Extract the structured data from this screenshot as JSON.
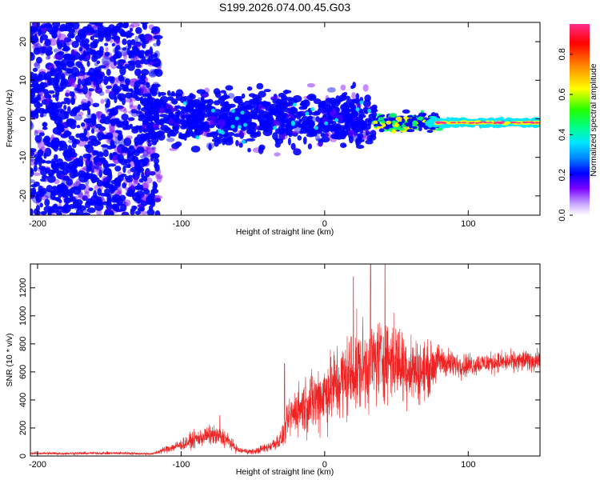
{
  "figure_title": "S199.2026.074.00.45.G03",
  "chart_data": [
    {
      "type": "heatmap",
      "title": "S199.2026.074.00.45.G03",
      "xlabel": "Height of straight line (km)",
      "ylabel": "Frequency (Hz)",
      "xlim": [
        -205,
        150
      ],
      "ylim": [
        -25,
        25
      ],
      "xticks": [
        -200,
        -100,
        0,
        100
      ],
      "yticks": [
        -20,
        -10,
        0,
        10,
        20
      ],
      "colorbar": {
        "label": "Normalized spectral amplitude",
        "range": [
          0,
          0.95
        ],
        "ticks": [
          0.0,
          0.2,
          0.4,
          0.6,
          0.8
        ],
        "colormap": [
          "#ffffff",
          "#7a00ff",
          "#0000ff",
          "#00e5ff",
          "#00ff66",
          "#ffff00",
          "#ff8800",
          "#ff0000",
          "#ff3399"
        ]
      },
      "features": [
        {
          "x_range": [
            -205,
            -125
          ],
          "freq_spread": [
            -25,
            25
          ],
          "typical_amplitude": 0.05
        },
        {
          "x_range": [
            -125,
            35
          ],
          "freq_spread": [
            -12,
            12
          ],
          "typical_amplitude": 0.1
        },
        {
          "x_range": [
            35,
            80
          ],
          "freq_center": -1,
          "freq_spread": [
            -3,
            2
          ],
          "typical_amplitude": 0.4
        },
        {
          "x_range": [
            80,
            150
          ],
          "freq_center": -1,
          "freq_spread": [
            -2,
            1
          ],
          "typical_amplitude": 0.85
        }
      ]
    },
    {
      "type": "line",
      "xlabel": "Height of straight line (km)",
      "ylabel": "SNR (10 * v/v)",
      "xlim": [
        -205,
        150
      ],
      "ylim": [
        0,
        1370
      ],
      "xticks": [
        -200,
        -100,
        0,
        100
      ],
      "yticks": [
        0,
        200,
        400,
        600,
        800,
        1000,
        1200
      ],
      "color": "#ee2222",
      "series": [
        {
          "name": "SNR",
          "x": [
            -205,
            -180,
            -160,
            -140,
            -120,
            -110,
            -100,
            -90,
            -80,
            -70,
            -60,
            -50,
            -40,
            -30,
            -25,
            -20,
            -10,
            0,
            10,
            20,
            30,
            40,
            50,
            60,
            70,
            80,
            90,
            100,
            110,
            120,
            130,
            140,
            150
          ],
          "values": [
            20,
            18,
            20,
            20,
            15,
            50,
            80,
            120,
            150,
            130,
            40,
            30,
            60,
            120,
            260,
            330,
            380,
            450,
            520,
            600,
            660,
            700,
            680,
            620,
            600,
            680,
            650,
            650,
            660,
            670,
            670,
            680,
            680
          ],
          "amplitude": [
            15,
            15,
            15,
            15,
            12,
            40,
            60,
            90,
            100,
            100,
            30,
            30,
            50,
            100,
            200,
            250,
            320,
            380,
            420,
            450,
            460,
            460,
            420,
            360,
            300,
            170,
            140,
            120,
            110,
            110,
            110,
            110,
            110
          ],
          "peaks": [
            {
              "x": 42,
              "value": 1370
            },
            {
              "x": 32,
              "value": 1370
            },
            {
              "x": 20,
              "value": 1280
            },
            {
              "x": -73,
              "value": 290
            },
            {
              "x": -28,
              "value": 660
            }
          ]
        }
      ]
    }
  ]
}
